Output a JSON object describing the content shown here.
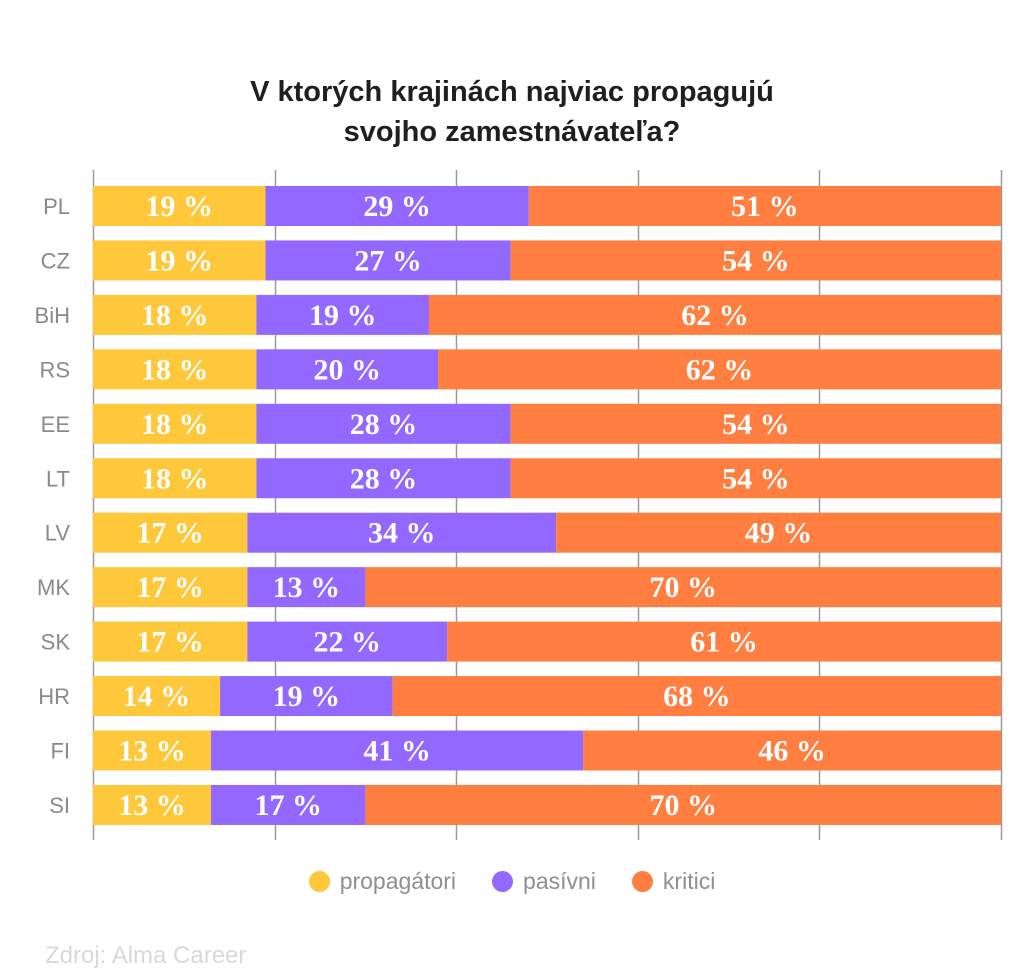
{
  "chart_data": {
    "type": "bar",
    "orientation": "horizontal",
    "stacked": true,
    "title": "V ktorých krajinách najviac propagujú svojho zamestnávateľa?",
    "title_lines": [
      "V ktorých krajinách najviac propagujú",
      "svojho zamestnávateľa?"
    ],
    "xlabel": "",
    "ylabel": "",
    "xlim": [
      0,
      100
    ],
    "grid": true,
    "legend_position": "bottom",
    "categories": [
      "PL",
      "CZ",
      "BiH",
      "RS",
      "EE",
      "LT",
      "LV",
      "MK",
      "SK",
      "HR",
      "FI",
      "SI"
    ],
    "series": [
      {
        "name": "propagátori",
        "color": "#FFC83A",
        "values": [
          19,
          19,
          18,
          18,
          18,
          18,
          17,
          17,
          17,
          14,
          13,
          13
        ]
      },
      {
        "name": "pasívni",
        "color": "#9268FF",
        "values": [
          29,
          27,
          19,
          20,
          28,
          28,
          34,
          13,
          22,
          19,
          41,
          17
        ]
      },
      {
        "name": "kritici",
        "color": "#FF7E40",
        "values": [
          51,
          54,
          62,
          62,
          54,
          54,
          49,
          70,
          61,
          68,
          46,
          70
        ]
      }
    ],
    "value_suffix": " %",
    "source": "Zdroj: Alma Career"
  },
  "colors": {
    "grid": "#9a9a9a",
    "label_text": "#ffffff"
  }
}
